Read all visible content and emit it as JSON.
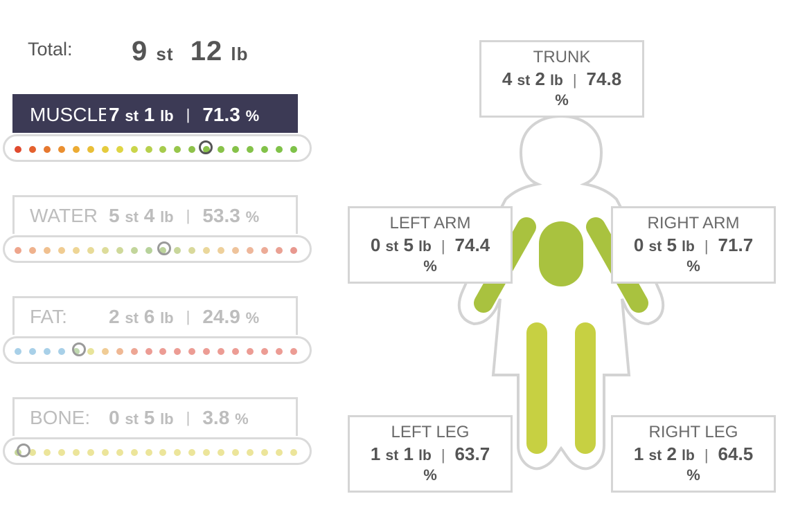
{
  "total": {
    "label": "Total:",
    "st": "9",
    "st_unit": "st",
    "lb": "12",
    "lb_unit": "lb"
  },
  "metrics": [
    {
      "name": "MUSCLE",
      "st": "7",
      "lb": "1",
      "pct": "71.3",
      "active": true,
      "marker_fraction": 0.68,
      "dot_colors": [
        "#e04a2e",
        "#e4612e",
        "#e6782f",
        "#ea8f30",
        "#ecab33",
        "#e9be37",
        "#e5cb3d",
        "#dfd544",
        "#cad54a",
        "#b7d04d",
        "#a6cb4c",
        "#97c64b",
        "#8ec24a",
        "#8ac24a",
        "#88c249",
        "#86c249",
        "#84c249",
        "#82c249",
        "#80c249",
        "#7ec249"
      ]
    },
    {
      "name": "WATER",
      "st": "5",
      "lb": "4",
      "pct": "53.3",
      "active": false,
      "marker_fraction": 0.53,
      "dot_colors": [
        "#eea58c",
        "#efb28d",
        "#f0c08f",
        "#f0cc92",
        "#eed595",
        "#e8db98",
        "#dddc9a",
        "#cfd99a",
        "#c2d59b",
        "#b7d29b",
        "#bcd39b",
        "#c8d69b",
        "#d9d99b",
        "#ead79b",
        "#eed09b",
        "#eec39b",
        "#eeb79b",
        "#ecab97",
        "#eaa193",
        "#e8988f"
      ]
    },
    {
      "name": "FAT:",
      "st": "2",
      "lb": "6",
      "pct": "24.9",
      "active": false,
      "marker_fraction": 0.22,
      "dot_colors": [
        "#a8d0e8",
        "#a8d0e8",
        "#a8d0e8",
        "#a8d0e8",
        "#c0d9b0",
        "#e8e49a",
        "#f0cc95",
        "#efb894",
        "#eda694",
        "#ec9c94",
        "#ec9c94",
        "#ec9c94",
        "#ec9c94",
        "#ec9c94",
        "#ec9c94",
        "#ec9c94",
        "#ec9c94",
        "#ec9c94",
        "#ec9c94",
        "#ec9c94"
      ]
    },
    {
      "name": "BONE:",
      "st": "0",
      "lb": "5",
      "pct": "3.8",
      "active": false,
      "marker_fraction": 0.02,
      "dot_colors": [
        "#c6d798",
        "#e8e49a",
        "#ece59a",
        "#ece59a",
        "#ece59a",
        "#ece59a",
        "#ece59a",
        "#ece59a",
        "#ece59a",
        "#ece59a",
        "#ece59a",
        "#ece59a",
        "#ece59a",
        "#ece59a",
        "#ece59a",
        "#ece59a",
        "#ece59a",
        "#ece59a",
        "#ece59a",
        "#ece59a"
      ]
    }
  ],
  "units": {
    "st": "st",
    "lb": "lb",
    "pct": "%",
    "pipe": "|"
  },
  "segments": {
    "trunk": {
      "title": "TRUNK",
      "st": "4",
      "lb": "2",
      "pct": "74.8"
    },
    "left_arm": {
      "title": "LEFT ARM",
      "st": "0",
      "lb": "5",
      "pct": "74.4"
    },
    "right_arm": {
      "title": "RIGHT ARM",
      "st": "0",
      "lb": "5",
      "pct": "71.7"
    },
    "left_leg": {
      "title": "LEFT LEG",
      "st": "1",
      "lb": "1",
      "pct": "63.7"
    },
    "right_leg": {
      "title": "RIGHT LEG",
      "st": "1",
      "lb": "2",
      "pct": "64.5"
    }
  },
  "colors": {
    "active_tab": "#3c3a55",
    "trunk_fill": "#a9c23f",
    "arm_fill": "#a9c23f",
    "leg_fill": "#c7d042",
    "figure_outline": "#d3d3d3"
  }
}
